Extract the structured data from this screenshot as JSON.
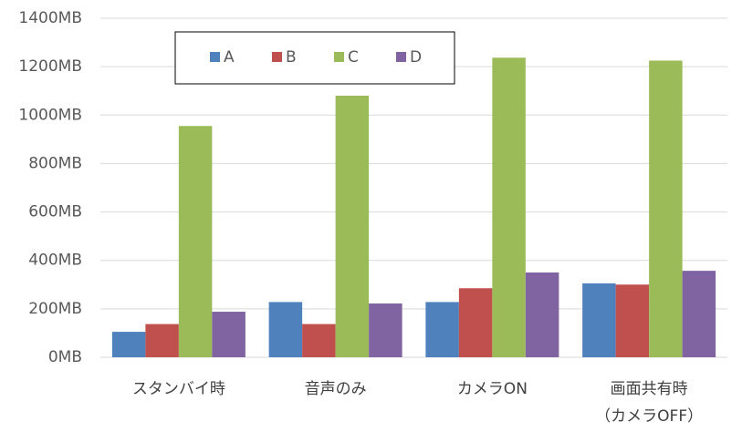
{
  "chart_data": {
    "type": "bar",
    "categories": [
      "スタンバイ時",
      "音声のみ",
      "カメラON",
      "画面共有時\n（カメラOFF）"
    ],
    "series": [
      {
        "name": "A",
        "color": "#4f81bd",
        "values": [
          105,
          228,
          228,
          305
        ]
      },
      {
        "name": "B",
        "color": "#c0504d",
        "values": [
          137,
          137,
          285,
          300
        ]
      },
      {
        "name": "C",
        "color": "#9bbb59",
        "values": [
          955,
          1080,
          1237,
          1225
        ]
      },
      {
        "name": "D",
        "color": "#8064a2",
        "values": [
          188,
          222,
          350,
          357
        ]
      }
    ],
    "ylim": [
      0,
      1400
    ],
    "yticks": [
      {
        "value": 0,
        "label": "0MB"
      },
      {
        "value": 200,
        "label": "200MB"
      },
      {
        "value": 400,
        "label": "400MB"
      },
      {
        "value": 600,
        "label": "600MB"
      },
      {
        "value": 800,
        "label": "800MB"
      },
      {
        "value": 1000,
        "label": "1000MB"
      },
      {
        "value": 1200,
        "label": "1200MB"
      },
      {
        "value": 1400,
        "label": "1400MB"
      }
    ],
    "grid": true,
    "legend": "top-left"
  }
}
